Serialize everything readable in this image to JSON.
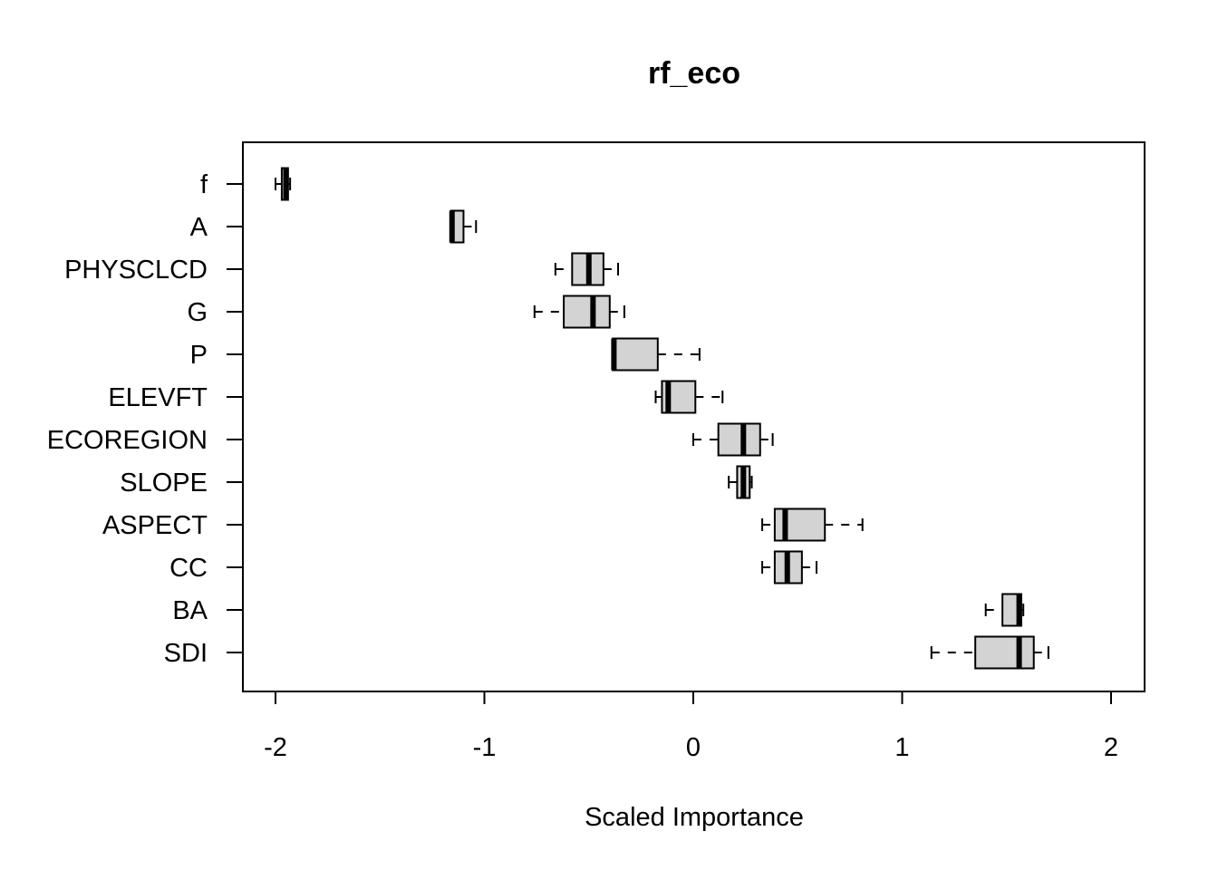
{
  "chart_data": {
    "type": "boxplot",
    "orientation": "horizontal",
    "title": "rf_eco",
    "xlabel": "Scaled Importance",
    "ylabel": "",
    "xlim": [
      -2.15,
      2.15
    ],
    "xticks": [
      -2,
      -1,
      0,
      1,
      2
    ],
    "xtick_labels": [
      "-2",
      "-1",
      "0",
      "1",
      "2"
    ],
    "grid": false,
    "legend": "none",
    "colors": {
      "box_fill": "#d3d3d3",
      "stroke": "#000000"
    },
    "categories": [
      "f",
      "A",
      "PHYSCLCD",
      "G",
      "P",
      "ELEVFT",
      "ECOREGION",
      "SLOPE",
      "ASPECT",
      "CC",
      "BA",
      "SDI"
    ],
    "boxes": [
      {
        "category": "f",
        "min": -2.0,
        "q1": -1.97,
        "median": -1.95,
        "q3": -1.94,
        "max": -1.93
      },
      {
        "category": "A",
        "min": -1.16,
        "q1": -1.16,
        "median": -1.155,
        "q3": -1.1,
        "max": -1.04
      },
      {
        "category": "PHYSCLCD",
        "min": -0.66,
        "q1": -0.58,
        "median": -0.5,
        "q3": -0.43,
        "max": -0.36
      },
      {
        "category": "G",
        "min": -0.76,
        "q1": -0.62,
        "median": -0.48,
        "q3": -0.4,
        "max": -0.33
      },
      {
        "category": "P",
        "min": -0.385,
        "q1": -0.385,
        "median": -0.38,
        "q3": -0.17,
        "max": 0.03
      },
      {
        "category": "ELEVFT",
        "min": -0.18,
        "q1": -0.15,
        "median": -0.12,
        "q3": 0.01,
        "max": 0.14
      },
      {
        "category": "ECOREGION",
        "min": 0.0,
        "q1": 0.12,
        "median": 0.24,
        "q3": 0.32,
        "max": 0.38
      },
      {
        "category": "SLOPE",
        "min": 0.17,
        "q1": 0.21,
        "median": 0.24,
        "q3": 0.27,
        "max": 0.28
      },
      {
        "category": "ASPECT",
        "min": 0.33,
        "q1": 0.39,
        "median": 0.44,
        "q3": 0.63,
        "max": 0.81
      },
      {
        "category": "CC",
        "min": 0.33,
        "q1": 0.39,
        "median": 0.45,
        "q3": 0.52,
        "max": 0.59
      },
      {
        "category": "BA",
        "min": 1.4,
        "q1": 1.48,
        "median": 1.56,
        "q3": 1.57,
        "max": 1.58
      },
      {
        "category": "SDI",
        "min": 1.14,
        "q1": 1.35,
        "median": 1.56,
        "q3": 1.63,
        "max": 1.7
      }
    ]
  }
}
